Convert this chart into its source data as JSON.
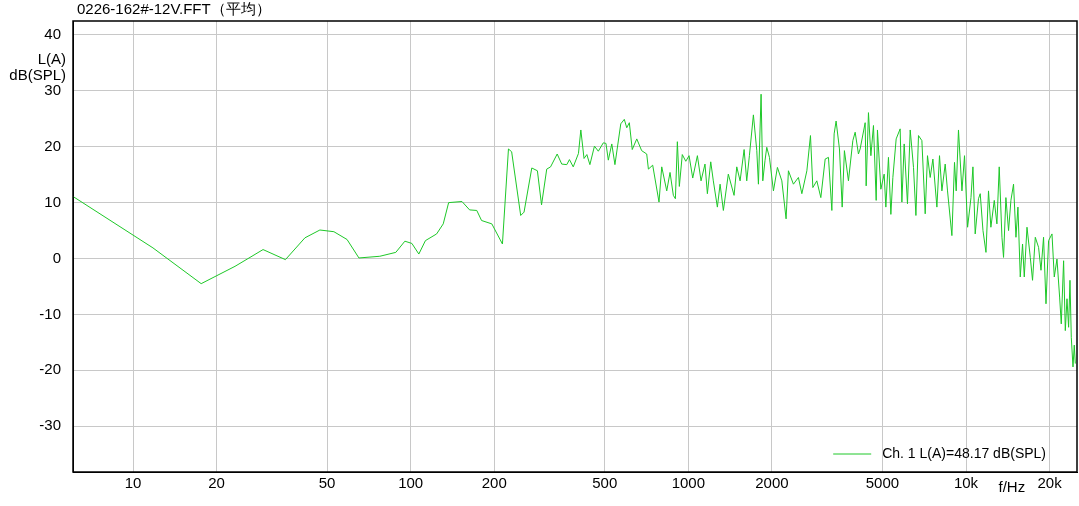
{
  "chart_data": {
    "type": "line",
    "title": "0226-162#-12V.FFT（平均）",
    "xlabel": "f/Hz",
    "ylabel": "L(A)\ndB(SPL)",
    "log": "x",
    "grid": true,
    "legend": "bottom right",
    "xlim": [
      6.08,
      25100
    ],
    "ylim": [
      -38.2,
      42.5
    ],
    "xticks": [
      10,
      20,
      50,
      100,
      200,
      500,
      1000,
      2000,
      5000,
      {
        "value": 10000,
        "label": "10k"
      },
      {
        "value": 20000,
        "label": "20k"
      }
    ],
    "yticks": [
      -30,
      -20,
      -10,
      0,
      10,
      20,
      30,
      40
    ],
    "series": [
      {
        "name": "Ch. 1 L(A)=48.17 dB(SPL)",
        "color": "#1ec828",
        "x": [
          6.08,
          11.8,
          17.6,
          23.3,
          29.4,
          35.4,
          41.6,
          47.1,
          52.9,
          59,
          65.1,
          77.4,
          88.4,
          95.3,
          101,
          107,
          113,
          124,
          131,
          137,
          153,
          163,
          173,
          180,
          196,
          214,
          225,
          231,
          249,
          256,
          273,
          286,
          296,
          309,
          319,
          337,
          350,
          365,
          373,
          385,
          402,
          410,
          421,
          431,
          442,
          459,
          474,
          494,
          505,
          515,
          530,
          544,
          571,
          588,
          600,
          613,
          628,
          652,
          679,
          708,
          718,
          744,
          784,
          802,
          836,
          859,
          883,
          898,
          913,
          928,
          951,
          979,
          1006,
          1037,
          1078,
          1111,
          1148,
          1171,
          1204,
          1230,
          1272,
          1301,
          1337,
          1393,
          1461,
          1494,
          1536,
          1588,
          1623,
          1659,
          1715,
          1764,
          1788,
          1828,
          1854,
          1888,
          1916,
          1959,
          2025,
          2093,
          2171,
          2249,
          2293,
          2390,
          2491,
          2563,
          2672,
          2753,
          2808,
          2902,
          3000,
          3110,
          3196,
          3287,
          3350,
          3405,
          3501,
          3581,
          3648,
          3772,
          3912,
          3988,
          4098,
          4156,
          4333,
          4369,
          4453,
          4543,
          4642,
          4747,
          4798,
          4935,
          5072,
          5144,
          5256,
          5362,
          5452,
          5603,
          5792,
          5875,
          5988,
          6154,
          6295,
          6470,
          6600,
          6743,
          6935,
          7128,
          7265,
          7430,
          7598,
          7854,
          8026,
          8187,
          8414,
          8578,
          8895,
          9089,
          9217,
          9394,
          9667,
          9876,
          10130,
          10420,
          10590,
          10790,
          11090,
          11250,
          11510,
          11800,
          12050,
          12290,
          12640,
          12920,
          13170,
          13470,
          13650,
          13920,
          14230,
          14510,
          14830,
          15130,
          15380,
          15680,
          15980,
          16210,
          16580,
          17040,
          17360,
          17760,
          18250,
          18620,
          19020,
          19410,
          19830,
          20400,
          20790,
          21260,
          21730,
          22030,
          22460,
          22780,
          23100,
          23410,
          23680,
          23940,
          24280,
          24540,
          24750
        ],
        "values": [
          11.1,
          1.9,
          -4.5,
          -1.4,
          1.6,
          -0.2,
          3.7,
          5.1,
          4.8,
          3.4,
          0.1,
          0.4,
          1.1,
          3.1,
          2.7,
          0.8,
          3.2,
          4.4,
          6.2,
          10,
          10.2,
          8.7,
          8.6,
          6.8,
          6.2,
          2.6,
          19.6,
          19.1,
          7.7,
          8.3,
          16.2,
          15.7,
          9.6,
          16,
          16.4,
          18.7,
          16.9,
          16.8,
          17.7,
          16.4,
          18.8,
          23,
          17.9,
          18.6,
          16.8,
          20.1,
          19.2,
          20.7,
          20.6,
          17.6,
          20.5,
          16.8,
          24.1,
          24.9,
          23.4,
          24.3,
          19.5,
          21.4,
          19.3,
          18.7,
          16,
          16.7,
          10.1,
          16.4,
          12.1,
          15.4,
          11.3,
          10.7,
          20.9,
          12.9,
          18.6,
          17.4,
          18.4,
          14.4,
          18.4,
          13.9,
          16.9,
          11.6,
          17.3,
          13.9,
          9.2,
          13.3,
          8.6,
          15.1,
          11.3,
          16.4,
          13.9,
          19.5,
          13.9,
          18.4,
          25.7,
          19.3,
          13.3,
          29.4,
          13.9,
          17.5,
          19.9,
          18.1,
          12.1,
          16.3,
          13.9,
          7.1,
          15.7,
          13.3,
          14.5,
          11.6,
          15.7,
          22,
          12.7,
          13.9,
          10.9,
          17.8,
          18.1,
          8.6,
          22.3,
          24.6,
          19.6,
          9.2,
          19.3,
          13.9,
          21.1,
          22.6,
          18.7,
          19.6,
          24.3,
          13,
          26.1,
          18.4,
          23.8,
          10.4,
          23,
          12.4,
          15.1,
          9.2,
          18.1,
          7.9,
          14.5,
          21.4,
          23.2,
          10.1,
          20.5,
          9.8,
          23,
          16.3,
          7.7,
          22,
          21.1,
          8,
          18.4,
          14.5,
          17.8,
          9.2,
          18.4,
          12.1,
          16.9,
          12.1,
          4.1,
          17.2,
          12.1,
          23,
          12.1,
          18.4,
          5.6,
          10.9,
          16.4,
          4.4,
          10.7,
          11.6,
          5,
          1.1,
          12.1,
          5.6,
          10.4,
          6.2,
          16.4,
          3.8,
          0.2,
          10.9,
          5,
          10.4,
          13.3,
          3.8,
          9.2,
          -3.3,
          2.6,
          -3.3,
          5.6,
          0.2,
          -3.9,
          3.8,
          2,
          -2.1,
          3.8,
          -8.1,
          3.2,
          4.4,
          -3.3,
          -0.1,
          -6.9,
          -11.7,
          -0.4,
          -12.9,
          -7.2,
          -12.3,
          -3.9,
          -14.1,
          -19.4,
          -15.5,
          -18.8
        ]
      }
    ]
  }
}
